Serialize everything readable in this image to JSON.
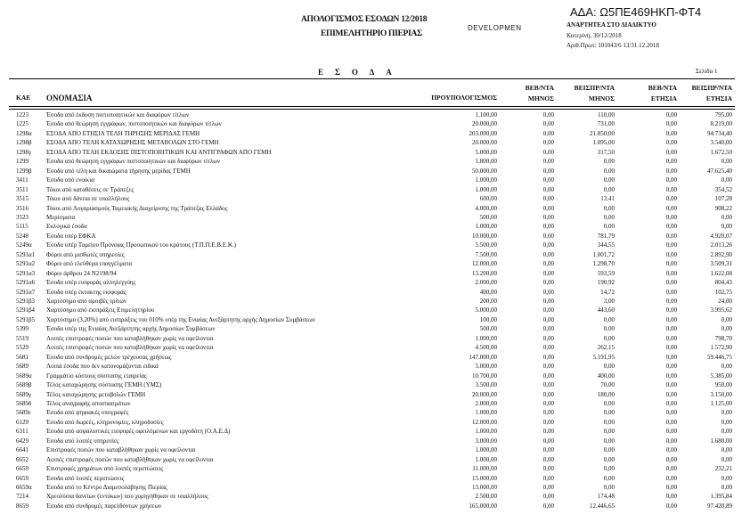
{
  "header": {
    "title_line1": "ΑΠΟΛΟΓΙΣΜΟΣ ΕΣΟΔΩΝ 12/2018",
    "title_line2": "ΕΠΙΜΕΛΗΤΗΡΙΟ ΠΙΕΡΙΑΣ",
    "overlay": "DEVELOPMEN",
    "ada": "ΑΔΑ: Ω5ΠΕ469ΗΚΠ-ΦΤ4",
    "publish": "ΑΝΑΡΤΗΤΕΑ ΣΤΟ ΔΙΑΔΙΚΤΥΟ",
    "place_date": "Κατερίνη, 30/12/2018",
    "protocol": "Αριθ.Πρωτ: 101043/6 13/31.12.2018",
    "section": "ΕΣΟΔΑ",
    "page": "Σελίδα 1"
  },
  "columns": [
    "ΚΑΕ",
    "ΟΝΟΜΑΣΙΑ",
    "ΠΡΟΥΠΟΛΟΓΙΣΜΟΣ",
    "ΒΕΒ/ΝΤΑ ΜΗΝΟΣ",
    "ΒΕΙΣΠΡ/ΝΤΑ ΜΗΝΟΣ",
    "ΒΕΒ/ΝΤΑ ΕΤΗΣΙΑ",
    "ΒΕΙΣΠΡ/ΝΤΑ ΕΤΗΣΙΑ"
  ],
  "rows": [
    [
      "1223",
      "Έσοδα από έκδοση πιστοποιητικών και διαφόρων τίτλων",
      "1.100,00",
      "0,00",
      "110,00",
      "0,00",
      "795,00"
    ],
    [
      "1225",
      "Έσοδα από θεώρηση εγγράφων, πιστοποιητικών και διαφόρων τίτλων",
      "20.000,00",
      "0,00",
      "731,00",
      "0,00",
      "8.219,00"
    ],
    [
      "1298α",
      "ΕΣΟΔΑ ΑΠΟ ΕΤΗΣΙΑ ΤΕΛΗ ΤΗΡΗΣΗΣ ΜΕΡΙΔΑΣ ΓΕΜΗ",
      "203.000,00",
      "0,00",
      "21.850,00",
      "0,00",
      "94.734,40"
    ],
    [
      "1298β",
      "ΕΣΟΔΑ ΑΠΟ ΤΕΛΗ ΚΑΤΑΧΩΡΗΣΗΣ ΜΕΤΑΒΟΛΩΝ ΣΤΟ ΓΕΜΗ",
      "20.000,00",
      "0,00",
      "1.095,00",
      "0,00",
      "3.540,00"
    ],
    [
      "1298γ",
      "ΕΣΟΔΑ ΑΠΟ ΤΕΛΗ ΕΚΔΟΣΗΣ ΠΙΣΤΟΠΟΙΗΤΙΚΩΝ ΚΑΙ ΑΝΤΙΓΡΑΦΩΝ ΑΠΟ ΓΕΜΗ",
      "5.000,00",
      "0,00",
      "317,50",
      "0,00",
      "1.672,50"
    ],
    [
      "1299",
      "Έσοδα από θεώρηση εγγράφων πιστοποιητικών και διαφόρων τίτλων",
      "1.800,00",
      "0,00",
      "0,00",
      "0,00",
      "0,00"
    ],
    [
      "1299β",
      "Έσοδα από τέλη και δικαιώματα τήρησης μερίδας ΓΕΜΗ",
      "50.000,00",
      "0,00",
      "0,00",
      "0,00",
      "47.625,40"
    ],
    [
      "3411",
      "Έσοδα από ενοίκια",
      "1.000,00",
      "0,00",
      "0,00",
      "0,00",
      "0,00"
    ],
    [
      "3511",
      "Τόκοι από καταθέσεις σε Τράπεζες",
      "1.000,00",
      "0,00",
      "0,00",
      "0,00",
      "354,52"
    ],
    [
      "3515",
      "Τόκοι από δάνεια σε υπαλλήλους",
      "600,00",
      "0,00",
      "13,41",
      "0,00",
      "107,28"
    ],
    [
      "3516",
      "Τόκοι από Λογαριασμούς Ταμειακής Διαχείρισης της Τράπεζας Ελλάδος",
      "4.000,00",
      "0,00",
      "0,00",
      "0,00",
      "908,22"
    ],
    [
      "3523",
      "Μερίσματα",
      "500,00",
      "0,00",
      "0,00",
      "0,00",
      "0,00"
    ],
    [
      "5115",
      "Εκλογικά έσοδα",
      "1.000,00",
      "0,00",
      "0,00",
      "0,00",
      "0,00"
    ],
    [
      "5248",
      "Έσοδα υπέρ ΕΦΚΑ",
      "10.000,00",
      "0,00",
      "781,79",
      "0,00",
      "4.920,07"
    ],
    [
      "5249α",
      "Έσοδα υπέρ Ταμείου Πρόνοιας Προσωπικού του κράτους (Τ.Π.Π.Ε.Β.Ε.Κ.)",
      "5.500,00",
      "0,00",
      "344,55",
      "0,00",
      "2.013,26"
    ],
    [
      "5291α1",
      "Φόροι από μισθωτές υπηρεσίες",
      "7.500,00",
      "0,00",
      "1.001,72",
      "0,00",
      "2.892,90"
    ],
    [
      "5291α2",
      "Φόροι από ελεύθερα επαγγέλματα",
      "12.000,00",
      "0,00",
      "1.298,70",
      "0,00",
      "3.509,31"
    ],
    [
      "5291α3",
      "Φόροι άρθρου 24 Ν2198/94",
      "13.200,00",
      "0,00",
      "593,59",
      "0,00",
      "1.622,08"
    ],
    [
      "5291α6",
      "Έσοδα υπέρ εισφοράς αλληλεγγύης",
      "2.000,00",
      "0,00",
      "190,92",
      "0,00",
      "804,43"
    ],
    [
      "5291α7",
      "Έσοδα υπέρ έκτακτης εισφοράς",
      "400,00",
      "0,00",
      "14,72",
      "0,00",
      "102,75"
    ],
    [
      "5291β3",
      "Χαρτόσημο από αμοιβές τρίτων",
      "200,00",
      "0,00",
      "3,00",
      "0,00",
      "24,00"
    ],
    [
      "5291β4",
      "Χαρτόσημο από εισπράξεις Επιμελητηρίου",
      "5.000,00",
      "0,00",
      "443,60",
      "0,00",
      "3.995,62"
    ],
    [
      "5291β5",
      "Χαρτόσημο (3,20%) από εισπράξεις του 010% υπέρ της Ενιαίας Ανεξάρτητης αρχής Δημοσίων Συμβάσεων",
      "100,00",
      "0,00",
      "0,00",
      "0,00",
      "0,00"
    ],
    [
      "5399",
      "Έσοδα υπέρ της Ενιαίας Ανεξάρτητης αρχής Δημοσίων Συμβάσεων",
      "500,00",
      "0,00",
      "0,00",
      "0,00",
      "0,00"
    ],
    [
      "5519",
      "Λοιπές επιστροφές ποσών που καταβλήθηκαν χωρίς να οφείλονται",
      "1.000,00",
      "0,00",
      "0,00",
      "0,00",
      "798,70"
    ],
    [
      "5529",
      "Λοιπές επιστροφές ποσών που καταβλήθηκαν χωρίς να οφείλονται",
      "4.500,00",
      "0,00",
      "262,15",
      "0,00",
      "1.572,90"
    ],
    [
      "5681",
      "Έσοδα από συνδρομές μελών τρέχουσας χρήσεως",
      "147.000,00",
      "0,00",
      "5.191,95",
      "0,00",
      "59.446,75"
    ],
    [
      "5689",
      "Λοιπά έσοδα που δεν κατονομάζονται ειδικά",
      "5.000,00",
      "0,00",
      "0,00",
      "0,00",
      "0,00"
    ],
    [
      "5689α",
      "Γραμμάτιο κόστους σύστασης εταιρείας",
      "10.700,00",
      "0,00",
      "400,00",
      "0,00",
      "5.385,00"
    ],
    [
      "5689β",
      "Τέλος καταχώρησης σύστασης ΓΕΜΗ (ΥΜΣ)",
      "3.500,00",
      "0,00",
      "70,00",
      "0,00",
      "950,00"
    ],
    [
      "5689γ",
      "Τέλος καταχώρησης μεταβολών ΓΕΜΗ",
      "20.000,00",
      "0,00",
      "180,00",
      "0,00",
      "3.150,00"
    ],
    [
      "5689δ",
      "Τέλος αναγραφής αποσπασμάτων",
      "2.000,00",
      "0,00",
      "0,00",
      "0,00",
      "1.125,00"
    ],
    [
      "5689ε",
      "Έσοδα από ψηφιακές υπογραφές",
      "1.000,00",
      "0,00",
      "0,00",
      "0,00",
      "0,00"
    ],
    [
      "6129",
      "Έσοδα από δωρεές, κληρονομίες, κληροδοσίες",
      "12.000,00",
      "0,00",
      "0,00",
      "0,00",
      "0,00"
    ],
    [
      "6311",
      "Έσοδα από ασφαλιστικές εισφορές οφειλόμενων και εργοδότη (Ο.Α.Ε.Δ)",
      "1.000,00",
      "0,00",
      "0,00",
      "0,00",
      "0,00"
    ],
    [
      "6429",
      "Έσοδα από λοιπές υπηρεσίες",
      "3.000,00",
      "0,00",
      "0,00",
      "0,00",
      "1.680,00"
    ],
    [
      "6641",
      "Επιστροφές ποσών που καταβλήθηκαν χωρίς να οφείλονται",
      "1.000,00",
      "0,00",
      "0,00",
      "0,00",
      "0,00"
    ],
    [
      "6652",
      "Λοιπές επιστροφές ποσών που καταβλήθηκαν χωρίς να οφείλονται",
      "1.000,00",
      "0,00",
      "0,00",
      "0,00",
      "0,00"
    ],
    [
      "6659",
      "Επιστροφές χρημάτων από λοιπές περιπτώσεις",
      "11.000,00",
      "0,00",
      "0,00",
      "0,00",
      "232,21"
    ],
    [
      "6659",
      "Έσοδα από λοιπές περιπτώσεις",
      "15.000,00",
      "0,00",
      "0,00",
      "0,00",
      "0,00"
    ],
    [
      "6659α",
      "Έσοδα από το Κέντρο Διαμεσολάβησης Πιερίας",
      "13.000,00",
      "0,00",
      "0,00",
      "0,00",
      "0,00"
    ],
    [
      "7214",
      "Χρεολύσια δανείων (εντόκων) που χορηγήθηκαν σε υπαλλήλους",
      "2.500,00",
      "0,00",
      "174,48",
      "0,00",
      "1.395,84"
    ],
    [
      "8659",
      "Έσοδα από συνδρομές παρελθόντων χρήσεων",
      "165.000,00",
      "0,00",
      "12.446,65",
      "0,00",
      "97.420,89"
    ]
  ]
}
